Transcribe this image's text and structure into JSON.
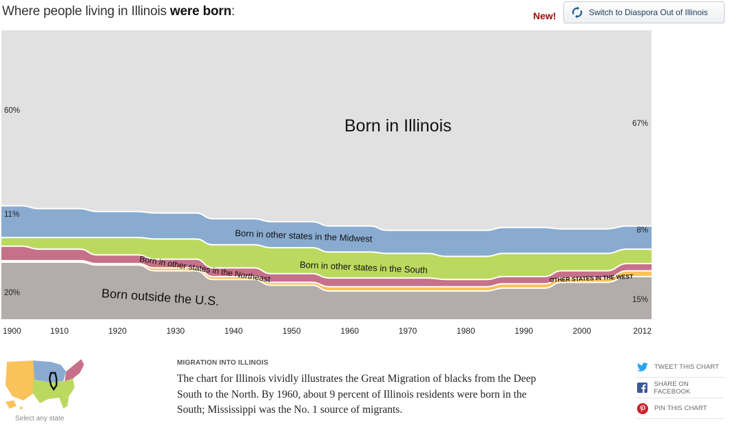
{
  "header": {
    "title_prefix": "Where people living in Illinois ",
    "title_bold": "were born",
    "title_suffix": ":",
    "new_badge": "New!",
    "switch_button": "Switch to Diaspora Out of Illinois"
  },
  "chart_data": {
    "type": "area",
    "stacking": "percent",
    "x": [
      1900,
      1910,
      1920,
      1930,
      1940,
      1950,
      1960,
      1970,
      1980,
      1990,
      2000,
      2012
    ],
    "tick_labels": [
      "1900",
      "1910",
      "1920",
      "1930",
      "1940",
      "1950",
      "1960",
      "1970",
      "1980",
      "1990",
      "2000",
      "2012"
    ],
    "series": [
      {
        "name": "Born outside the U.S.",
        "color": "#b2adab",
        "values": [
          20,
          20,
          19,
          17,
          14,
          12,
          10,
          10,
          10,
          11,
          13,
          15
        ]
      },
      {
        "name": "Other states in the West",
        "color": "#f9c25a",
        "values": [
          0.5,
          0.5,
          0.5,
          1,
          1,
          1,
          1.5,
          1.5,
          1.5,
          1.5,
          1.5,
          2
        ]
      },
      {
        "name": "Born in other states in the Northeast",
        "color": "#c6708a",
        "values": [
          5,
          4,
          3,
          3,
          3,
          3,
          3,
          3,
          2.5,
          2.5,
          2.5,
          2.5
        ]
      },
      {
        "name": "Born in other states in the South",
        "color": "#bcd95f",
        "values": [
          3,
          4,
          6,
          7,
          8,
          9,
          9,
          8.5,
          8,
          8,
          6,
          5
        ]
      },
      {
        "name": "Born in other states in the Midwest",
        "color": "#89abd0",
        "values": [
          11,
          10,
          9,
          9,
          9,
          9,
          9,
          8,
          9,
          9,
          8.5,
          8
        ]
      },
      {
        "name": "Born in Illinois",
        "color": "#e1e1e1",
        "values": [
          60.5,
          61.5,
          62.5,
          63,
          65,
          66,
          67.5,
          69,
          69,
          68,
          68.5,
          67.5
        ]
      }
    ],
    "labels": {
      "illinois": "Born in Illinois",
      "midwest": "Born in other states in the Midwest",
      "south": "Born in other states in the South",
      "northeast": "Born in other states in the Northeast",
      "west": "OTHER STATES IN THE WEST",
      "foreign": "Born outside the U.S."
    },
    "annotations": {
      "left": {
        "illinois": "60%",
        "midwest": "11%",
        "foreign": "20%"
      },
      "right": {
        "illinois": "67%",
        "midwest": "8%",
        "foreign": "15%"
      }
    },
    "ylim": [
      0,
      100
    ]
  },
  "map": {
    "caption": "Select any state",
    "region_colors": {
      "west": "#f9c25a",
      "midwest": "#89abd0",
      "northeast": "#c6708a",
      "south": "#bcd95f"
    }
  },
  "article": {
    "kicker": "MIGRATION INTO ILLINOIS",
    "body": "The chart for Illinois vividly illustrates the Great Migration of blacks from the Deep South to the North. By 1960, about 9 percent of Illinois residents were born in the South; Mississippi was the No. 1 source of migrants."
  },
  "share": {
    "tweet": "TWEET THIS CHART",
    "facebook": "SHARE ON FACEBOOK",
    "pin": "PIN THIS CHART",
    "colors": {
      "twitter": "#2aa3ef",
      "facebook": "#3b5998",
      "pinterest": "#cb2027"
    },
    "icons": [
      "twitter-icon",
      "facebook-icon",
      "pinterest-icon"
    ]
  }
}
